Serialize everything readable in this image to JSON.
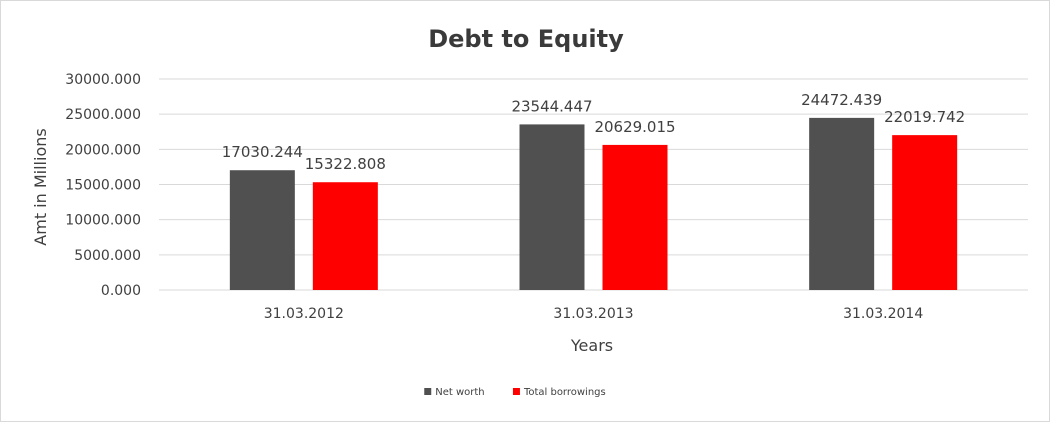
{
  "chart_data": {
    "type": "bar",
    "title": "Debt to Equity",
    "xlabel": "Years",
    "ylabel": "Amt in Millions",
    "categories": [
      "31.03.2012",
      "31.03.2013",
      "31.03.2014"
    ],
    "series": [
      {
        "name": "Net worth",
        "color": "#505050",
        "values": [
          17030.244,
          23544.447,
          24472.439
        ]
      },
      {
        "name": "Total borrowings",
        "color": "#ff0000",
        "values": [
          15322.808,
          20629.015,
          22019.742
        ]
      }
    ],
    "data_labels": [
      [
        "17030.244",
        "23544.447",
        "24472.439"
      ],
      [
        "15322.808",
        "20629.015",
        "22019.742"
      ]
    ],
    "ylim": [
      0,
      30000
    ],
    "yticks": [
      0,
      5000,
      10000,
      15000,
      20000,
      25000,
      30000
    ],
    "ytick_labels": [
      "0.000",
      "5000.000",
      "10000.000",
      "15000.000",
      "20000.000",
      "25000.000",
      "30000.000"
    ],
    "grid": true,
    "legend_position": "bottom"
  }
}
